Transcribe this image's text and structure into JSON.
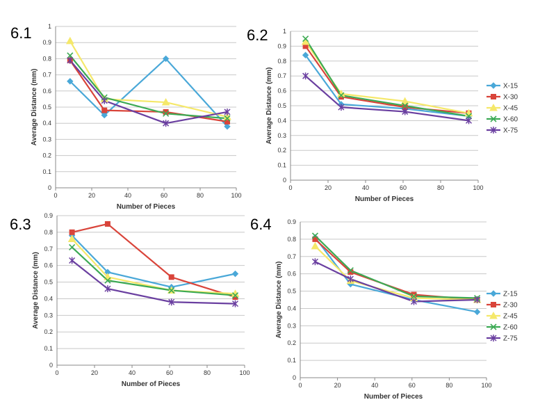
{
  "chart_data": [
    {
      "type": "line",
      "panel_label": "6.1",
      "xlabel": "Number of Pieces",
      "ylabel": "Average Distance (mm)",
      "xlim": [
        0,
        100
      ],
      "ylim": [
        0,
        1
      ],
      "xticks": [
        0,
        20,
        40,
        60,
        80,
        100
      ],
      "yticks": [
        0,
        0.1,
        0.2,
        0.3,
        0.4,
        0.5,
        0.6,
        0.7,
        0.8,
        0.9,
        1
      ],
      "grid": true,
      "legend": "none",
      "x": [
        8,
        27,
        61,
        95
      ],
      "series": [
        {
          "name": "X-15",
          "color": "#4aa8d8",
          "marker": "diamond",
          "values": [
            0.66,
            0.45,
            0.8,
            0.38
          ]
        },
        {
          "name": "X-30",
          "color": "#d9443a",
          "marker": "square",
          "values": [
            0.79,
            0.48,
            0.47,
            0.41
          ]
        },
        {
          "name": "X-45",
          "color": "#f5e86a",
          "marker": "triangle",
          "values": [
            0.91,
            0.55,
            0.53,
            0.44
          ]
        },
        {
          "name": "X-60",
          "color": "#3caa54",
          "marker": "x",
          "values": [
            0.82,
            0.56,
            0.46,
            0.43
          ]
        },
        {
          "name": "X-75",
          "color": "#6a3fa0",
          "marker": "star",
          "values": [
            0.79,
            0.54,
            0.4,
            0.47
          ]
        }
      ]
    },
    {
      "type": "line",
      "panel_label": "6.2",
      "xlabel": "Number of Pieces",
      "ylabel": "Average Distance (mm)",
      "xlim": [
        0,
        100
      ],
      "ylim": [
        0,
        1
      ],
      "xticks": [
        0,
        20,
        40,
        60,
        80,
        100
      ],
      "yticks": [
        0,
        0.1,
        0.2,
        0.3,
        0.4,
        0.5,
        0.6,
        0.7,
        0.8,
        0.9,
        1
      ],
      "grid": true,
      "legend": "right",
      "x": [
        8,
        27,
        61,
        95
      ],
      "series": [
        {
          "name": "X-15",
          "color": "#4aa8d8",
          "marker": "diamond",
          "values": [
            0.84,
            0.51,
            0.48,
            0.43
          ]
        },
        {
          "name": "X-30",
          "color": "#d9443a",
          "marker": "square",
          "values": [
            0.9,
            0.56,
            0.49,
            0.45
          ]
        },
        {
          "name": "X-45",
          "color": "#f5e86a",
          "marker": "triangle",
          "values": [
            0.93,
            0.58,
            0.53,
            0.45
          ]
        },
        {
          "name": "X-60",
          "color": "#3caa54",
          "marker": "x",
          "values": [
            0.95,
            0.57,
            0.5,
            0.43
          ]
        },
        {
          "name": "X-75",
          "color": "#6a3fa0",
          "marker": "star",
          "values": [
            0.7,
            0.49,
            0.46,
            0.4
          ]
        }
      ]
    },
    {
      "type": "line",
      "panel_label": "6.3",
      "xlabel": "Number of Pieces",
      "ylabel": "Average Distance (mm)",
      "xlim": [
        0,
        100
      ],
      "ylim": [
        0,
        0.9
      ],
      "xticks": [
        0,
        20,
        40,
        60,
        80,
        100
      ],
      "yticks": [
        0,
        0.1,
        0.2,
        0.3,
        0.4,
        0.5,
        0.6,
        0.7,
        0.8,
        0.9
      ],
      "grid": true,
      "legend": "none",
      "x": [
        8,
        27,
        61,
        95
      ],
      "series": [
        {
          "name": "Z-15",
          "color": "#4aa8d8",
          "marker": "diamond",
          "values": [
            0.78,
            0.56,
            0.47,
            0.55
          ]
        },
        {
          "name": "Z-30",
          "color": "#d9443a",
          "marker": "square",
          "values": [
            0.8,
            0.85,
            0.53,
            0.41
          ]
        },
        {
          "name": "Z-45",
          "color": "#f5e86a",
          "marker": "triangle",
          "values": [
            0.76,
            0.53,
            0.45,
            0.43
          ]
        },
        {
          "name": "Z-60",
          "color": "#3caa54",
          "marker": "x",
          "values": [
            0.71,
            0.51,
            0.45,
            0.42
          ]
        },
        {
          "name": "Z-75",
          "color": "#6a3fa0",
          "marker": "star",
          "values": [
            0.63,
            0.46,
            0.38,
            0.37
          ]
        }
      ]
    },
    {
      "type": "line",
      "panel_label": "6.4",
      "xlabel": "Number of Pieces",
      "ylabel": "Average Distance (mm)",
      "xlim": [
        0,
        100
      ],
      "ylim": [
        0,
        0.9
      ],
      "xticks": [
        0,
        20,
        40,
        60,
        80,
        100
      ],
      "yticks": [
        0,
        0.1,
        0.2,
        0.3,
        0.4,
        0.5,
        0.6,
        0.7,
        0.8,
        0.9
      ],
      "grid": true,
      "legend": "right",
      "x": [
        8,
        27,
        61,
        95
      ],
      "series": [
        {
          "name": "Z-15",
          "color": "#4aa8d8",
          "marker": "diamond",
          "values": [
            0.81,
            0.54,
            0.45,
            0.38
          ]
        },
        {
          "name": "Z-30",
          "color": "#d9443a",
          "marker": "square",
          "values": [
            0.8,
            0.61,
            0.48,
            0.45
          ]
        },
        {
          "name": "Z-45",
          "color": "#f5e86a",
          "marker": "triangle",
          "values": [
            0.76,
            0.56,
            0.46,
            0.45
          ]
        },
        {
          "name": "Z-60",
          "color": "#3caa54",
          "marker": "x",
          "values": [
            0.82,
            0.62,
            0.47,
            0.46
          ]
        },
        {
          "name": "Z-75",
          "color": "#6a3fa0",
          "marker": "star",
          "values": [
            0.67,
            0.57,
            0.44,
            0.45
          ]
        }
      ]
    }
  ]
}
